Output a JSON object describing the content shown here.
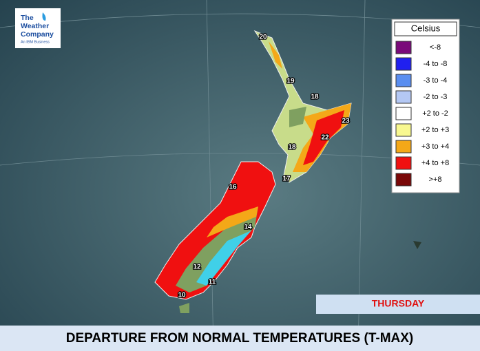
{
  "logo": {
    "line1": "The",
    "line2": "Weather",
    "line3": "Company",
    "tagline": "An IBM Business"
  },
  "legend": {
    "title": "Celsius",
    "items": [
      {
        "label": "<-8",
        "color": "#7a0a7a"
      },
      {
        "label": "-4 to -8",
        "color": "#2020f0"
      },
      {
        "label": "-3 to -4",
        "color": "#5a8ef0"
      },
      {
        "label": "-2 to -3",
        "color": "#b4c8f4"
      },
      {
        "label": "+2 to -2",
        "color": "#ffffff"
      },
      {
        "label": "+2 to +3",
        "color": "#f8f890"
      },
      {
        "label": "+3 to +4",
        "color": "#f4a818"
      },
      {
        "label": "+4 to +8",
        "color": "#f01010"
      },
      {
        "label": ">+8",
        "color": "#7a0808"
      }
    ]
  },
  "temperatures": [
    20,
    19,
    18,
    23,
    22,
    18,
    17,
    16,
    14,
    12,
    11,
    10
  ],
  "day": "THURSDAY",
  "title": "DEPARTURE FROM NORMAL TEMPERATURES (T-MAX)"
}
